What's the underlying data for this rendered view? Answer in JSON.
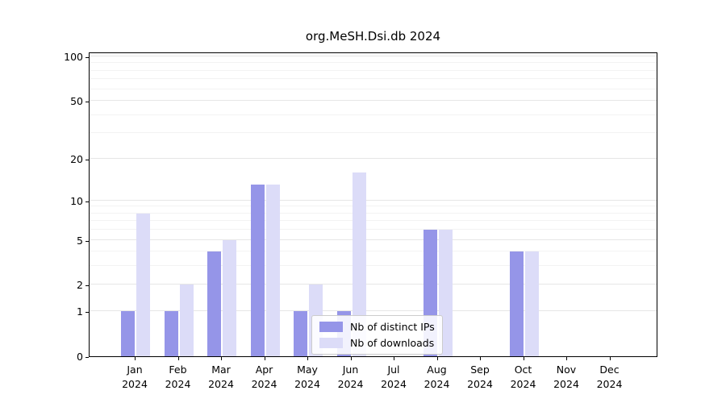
{
  "figure": {
    "title": "org.MeSH.Dsi.db 2024"
  },
  "chart_data": {
    "type": "bar",
    "title": "org.MeSH.Dsi.db 2024",
    "yscale": "log(1+x)",
    "ylim": [
      0,
      100
    ],
    "yticks_labeled": [
      0,
      1,
      2,
      5,
      10,
      20,
      50,
      100
    ],
    "yticks_minor": [
      3,
      4,
      6,
      7,
      8,
      9,
      30,
      40,
      60,
      70,
      80,
      90
    ],
    "categories": [
      "Jan",
      "Feb",
      "Mar",
      "Apr",
      "May",
      "Jun",
      "Jul",
      "Aug",
      "Sep",
      "Oct",
      "Nov",
      "Dec"
    ],
    "year": "2024",
    "series": [
      {
        "name": "Nb of distinct IPs",
        "color": "#9595e8",
        "values": [
          1,
          1,
          4,
          13,
          1,
          1,
          0,
          6,
          0,
          4,
          0,
          0
        ]
      },
      {
        "name": "Nb of downloads",
        "color": "#dcdcf8",
        "values": [
          8,
          2,
          5,
          13,
          2,
          16,
          0,
          6,
          0,
          4,
          0,
          0
        ]
      }
    ],
    "legend": {
      "position": "inside-bottom-center",
      "entries": [
        "Nb of distinct IPs",
        "Nb of downloads"
      ]
    },
    "grid": true,
    "xlabel": "",
    "ylabel": ""
  },
  "colors": {
    "grid_major": "#e6e6e6",
    "grid_minor": "#f3f3f3",
    "spine": "#000000",
    "background": "#ffffff"
  }
}
